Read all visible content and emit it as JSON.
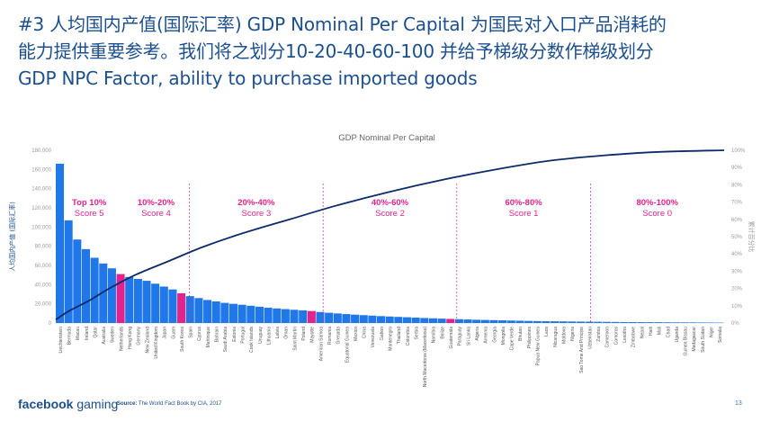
{
  "slide": {
    "title_lines": [
      "#3 人均国内产值(国际汇率) GDP Nominal Per Capital 为国民对入口产品消耗的",
      "能力提供重要参考。我们将之划分10-20-40-60-100 并给予梯级分数作梯级划分",
      "GDP NPC Factor, ability to purchase imported goods"
    ],
    "brand_bold": "facebook",
    "brand_light": " gaming",
    "source_label": "Source:",
    "source_text": " The World Fact Book by CIA, 2017",
    "page_number": "13"
  },
  "colors": {
    "title": "#1c4f8e",
    "bar": "#1f77e8",
    "highlight_bar": "#e0248c",
    "curve": "#0d2a6b",
    "segment_text": "#e0248c",
    "tick_text": "#9a9a9a"
  },
  "chart_data": {
    "type": "bar",
    "title": "GDP Nominal Per Capital",
    "ylabel": "人均国内产值 (国际汇率)",
    "y2label": "累计百分比",
    "ylim": [
      0,
      180000
    ],
    "y2lim": [
      0,
      1
    ],
    "yticks": [
      "0",
      "20,000",
      "40,000",
      "60,000",
      "80,000",
      "100,000",
      "120,000",
      "140,000",
      "160,000",
      "180,000"
    ],
    "y2ticks": [
      "0%",
      "10%",
      "20%",
      "30%",
      "40%",
      "50%",
      "60%",
      "70%",
      "80%",
      "90%",
      "100%"
    ],
    "categories": [
      "Liechtenstein",
      "Bermuda",
      "Macau",
      "Ireland",
      "Qatar",
      "Australia",
      "Sweden",
      "Netherlands",
      "Hong Kong",
      "Germany",
      "New Zealand",
      "United Kingdom",
      "Japan",
      "Guam",
      "South Korea",
      "Spain",
      "Cyprus",
      "Martinique",
      "Bahrain",
      "Saudi Arabia",
      "Estonia",
      "Portugal",
      "Cook Islands",
      "Uruguay",
      "Lithuania",
      "Latvia",
      "Oman",
      "Saint Martin",
      "Poland",
      "Mayotte",
      "American Samoa",
      "Romania",
      "Grenada",
      "Equatorial Guinea",
      "Mexico",
      "China",
      "Venezuela",
      "Gabon",
      "Montenegro",
      "Thailand",
      "Colombia",
      "Serbia",
      "North Macedonia (Macedonia)",
      "Namibia",
      "Belize",
      "Guatemala",
      "Paraguay",
      "Sri Lanka",
      "Algeria",
      "Armenia",
      "Georgia",
      "Mongolia",
      "Cape Verde",
      "Bhutan",
      "Philippines",
      "Papua New Guinea",
      "Laos",
      "Nicaragua",
      "Moldova",
      "Nigeria",
      "Sao Tome And Principe",
      "Uzbekistan",
      "Zambia",
      "Cameroon",
      "Comoros",
      "Lesotho",
      "Zimbabwe",
      "Nepal",
      "Haiti",
      "Mali",
      "Chad",
      "Uganda",
      "Guinea Bissau",
      "Madagascar",
      "South Sudan",
      "Niger",
      "Somalia"
    ],
    "values": [
      166000,
      107000,
      87000,
      77000,
      68000,
      62000,
      57000,
      51000,
      48000,
      46000,
      44000,
      41000,
      38000,
      35000,
      31000,
      28000,
      26000,
      24000,
      22500,
      21000,
      20000,
      19000,
      18000,
      17000,
      16000,
      15200,
      14500,
      13800,
      13200,
      12500,
      11500,
      10700,
      10000,
      9300,
      8700,
      8200,
      7700,
      7200,
      6800,
      6400,
      6000,
      5600,
      5200,
      4900,
      4600,
      4300,
      4000,
      3700,
      3400,
      3200,
      3000,
      2800,
      2600,
      2400,
      2200,
      2000,
      1900,
      1800,
      1700,
      1600,
      1500,
      1400,
      1300,
      1200,
      1100,
      1000,
      950,
      900,
      850,
      800,
      750,
      700,
      650,
      600,
      550,
      500,
      400
    ],
    "highlighted_categories": [
      "Netherlands",
      "South Korea",
      "Mayotte",
      "Guatemala"
    ],
    "cumulative_curve": [
      [
        0,
        0.02
      ],
      [
        0.02,
        0.07
      ],
      [
        0.05,
        0.13
      ],
      [
        0.08,
        0.2
      ],
      [
        0.12,
        0.28
      ],
      [
        0.17,
        0.36
      ],
      [
        0.22,
        0.44
      ],
      [
        0.28,
        0.52
      ],
      [
        0.35,
        0.6
      ],
      [
        0.42,
        0.68
      ],
      [
        0.5,
        0.76
      ],
      [
        0.58,
        0.83
      ],
      [
        0.66,
        0.89
      ],
      [
        0.74,
        0.94
      ],
      [
        0.82,
        0.97
      ],
      [
        0.9,
        0.99
      ],
      [
        1,
        1
      ]
    ],
    "segments": [
      {
        "label": "Top 10%",
        "score": "Score 5",
        "x_start": 0,
        "x_end": 0.1
      },
      {
        "label": "10%-20%",
        "score": "Score 4",
        "x_start": 0.1,
        "x_end": 0.2
      },
      {
        "label": "20%-40%",
        "score": "Score 3",
        "x_start": 0.2,
        "x_end": 0.4
      },
      {
        "label": "40%-60%",
        "score": "Score 2",
        "x_start": 0.4,
        "x_end": 0.6
      },
      {
        "label": "60%-80%",
        "score": "Score 1",
        "x_start": 0.6,
        "x_end": 0.8
      },
      {
        "label": "80%-100%",
        "score": "Score 0",
        "x_start": 0.8,
        "x_end": 1
      }
    ],
    "segment_boundaries": [
      0.2,
      0.4,
      0.6,
      0.8
    ]
  }
}
